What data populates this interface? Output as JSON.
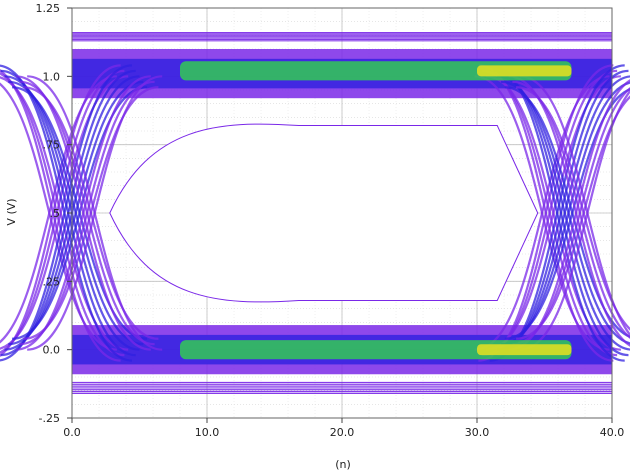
{
  "chart_data": {
    "type": "eye-diagram",
    "xlabel": "(n)",
    "ylabel": "V (V)",
    "xlim": [
      0,
      40
    ],
    "ylim": [
      -0.25,
      1.25
    ],
    "x_ticks": [
      0,
      10,
      20,
      30,
      40
    ],
    "x_tick_labels": [
      "0.0",
      "10.0",
      "20.0",
      "30.0",
      "40.0"
    ],
    "y_ticks": [
      -0.25,
      0,
      0.25,
      0.5,
      0.75,
      1.0,
      1.25
    ],
    "y_tick_labels": [
      "-.25",
      "0.0",
      ".25",
      ".5",
      ".75",
      "1.0",
      "1.25"
    ],
    "grid": true,
    "levels": {
      "low": 0.0,
      "high": 1.0,
      "low_overshoot": -0.15,
      "high_overshoot": 1.15
    },
    "eye_opening": {
      "inner_high": 0.82,
      "inner_low": 0.18,
      "crossing": 0.5
    },
    "crossings_x": [
      0,
      36.5
    ],
    "colors": {
      "trace": "#7a28e8",
      "dense": "#3020e0",
      "hot": "#30e040",
      "peak": "#e8e020"
    }
  }
}
